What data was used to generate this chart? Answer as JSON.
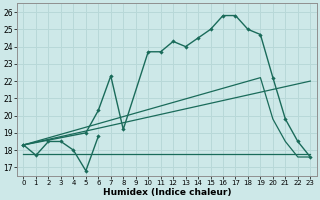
{
  "xlabel": "Humidex (Indice chaleur)",
  "background_color": "#cde8e8",
  "grid_color": "#b8d8d8",
  "line_color": "#1a6b5a",
  "xlim": [
    -0.5,
    23.5
  ],
  "ylim": [
    16.5,
    26.5
  ],
  "xticks": [
    0,
    1,
    2,
    3,
    4,
    5,
    6,
    7,
    8,
    9,
    10,
    11,
    12,
    13,
    14,
    15,
    16,
    17,
    18,
    19,
    20,
    21,
    22,
    23
  ],
  "yticks": [
    17,
    18,
    19,
    20,
    21,
    22,
    23,
    24,
    25,
    26
  ],
  "line1_x": [
    0,
    1,
    2,
    3,
    4,
    5,
    6
  ],
  "line1_y": [
    18.3,
    17.7,
    18.5,
    18.5,
    18.0,
    16.8,
    18.8
  ],
  "line2_x": [
    0,
    23
  ],
  "line2_y": [
    17.8,
    17.8
  ],
  "line3_x": [
    0,
    19,
    20,
    21,
    22,
    23
  ],
  "line3_y": [
    18.3,
    22.2,
    19.8,
    18.5,
    17.6,
    17.6
  ],
  "line4_x": [
    0,
    5,
    6,
    7,
    8,
    10,
    11,
    12,
    13,
    14,
    15,
    16,
    17,
    18,
    19,
    20,
    21,
    22,
    23
  ],
  "line4_y": [
    18.3,
    19.0,
    20.3,
    22.3,
    19.2,
    23.7,
    23.7,
    24.3,
    24.0,
    24.5,
    25.0,
    25.8,
    25.8,
    25.0,
    24.7,
    22.2,
    19.8,
    18.5,
    17.6
  ]
}
